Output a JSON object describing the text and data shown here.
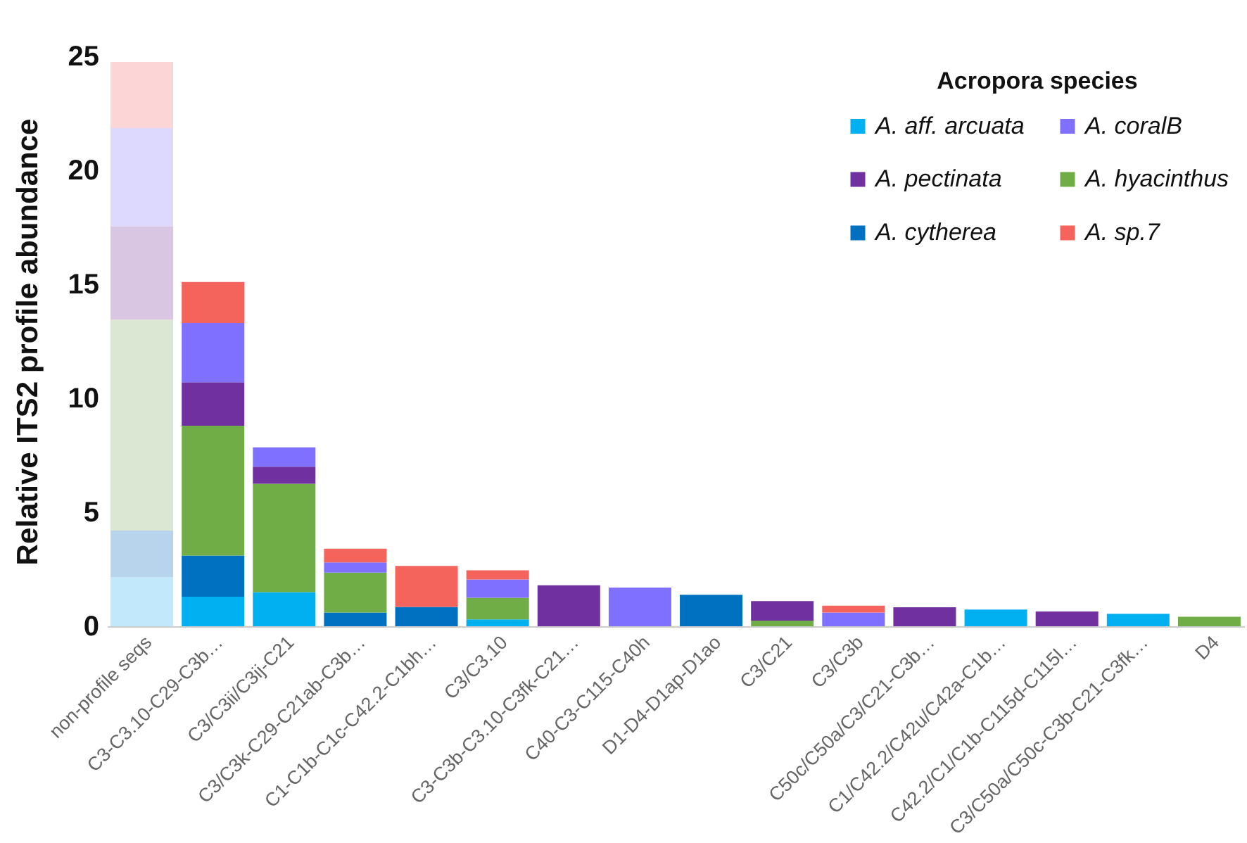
{
  "chart_data": {
    "type": "bar",
    "stacked": true,
    "ylabel": "Relative ITS2 profile abundance",
    "legend_title": "Acropora species",
    "legend": "top right",
    "grid": false,
    "categories": [
      "non-profile seqs",
      "C3-C3.10-C29-C3b…",
      "C3/C3ii/C3ij-C21",
      "C3/C3k-C29-C21ab-C3b…",
      "C1-C1b-C1c-C42.2-C1bh…",
      "C3/C3.10",
      "C3-C3b-C3.10-C3fk-C21…",
      "C40-C3-C115-C40h",
      "D1-D4-D1ap-D1ao",
      "C3/C21",
      "C3/C3b",
      "C50c/C50a/C3/C21-C3b…",
      "C1/C42.2/C42u/C42a-C1b…",
      "C42.2/C1/C1b-C115d-C115l…",
      "C3/C50a/C50c-C3b-C21-C3fk…",
      "D4"
    ],
    "ylim": [
      0,
      25
    ],
    "yticks": [
      0,
      5,
      10,
      15,
      20,
      25
    ],
    "series": [
      {
        "name": "A. aff. arcuata",
        "color": "#00b0f0",
        "colors": [
          "#c2e9fb",
          "#00b0f0",
          "#00b0f0",
          "#00b0f0",
          "#00b0f0",
          "#00b0f0",
          "#00b0f0",
          "#00b0f0",
          "#00b0f0",
          "#00b0f0",
          "#00b0f0",
          "#00b0f0",
          "#00b0f0",
          "#00b0f0",
          "#00b0f0",
          "#00b0f0"
        ],
        "values": [
          2.15,
          1.3,
          1.5,
          null,
          null,
          0.3,
          null,
          null,
          null,
          null,
          null,
          null,
          0.73,
          null,
          0.55,
          null
        ]
      },
      {
        "name": "A. cytherea",
        "color": "#0070c0",
        "colors": [
          "#b8d4ec",
          "#0070c0",
          "#0070c0",
          "#0070c0",
          "#0070c0",
          "#0070c0",
          "#0070c0",
          "#0070c0",
          "#0070c0",
          "#0070c0",
          "#0070c0",
          "#0070c0",
          "#0070c0",
          "#0070c0",
          "#0070c0",
          "#0070c0"
        ],
        "values": [
          2.05,
          1.8,
          null,
          0.6,
          0.85,
          null,
          null,
          null,
          1.38,
          null,
          null,
          null,
          null,
          null,
          null,
          null
        ]
      },
      {
        "name": "A. hyacinthus",
        "color": "#70ad47",
        "colors": [
          "#dbe7d3",
          "#70ad47",
          "#70ad47",
          "#70ad47",
          "#70ad47",
          "#70ad47",
          "#70ad47",
          "#70ad47",
          "#70ad47",
          "#70ad47",
          "#70ad47",
          "#70ad47",
          "#70ad47",
          "#70ad47",
          "#70ad47",
          "#70ad47"
        ],
        "values": [
          9.25,
          5.7,
          4.75,
          1.75,
          null,
          0.95,
          null,
          null,
          null,
          0.25,
          null,
          null,
          null,
          null,
          null,
          0.42
        ]
      },
      {
        "name": "A. pectinata",
        "color": "#7030a0",
        "colors": [
          "#d8c6e2",
          "#7030a0",
          "#7030a0",
          "#7030a0",
          "#7030a0",
          "#7030a0",
          "#7030a0",
          "#7030a0",
          "#7030a0",
          "#7030a0",
          "#7030a0",
          "#7030a0",
          "#7030a0",
          "#7030a0",
          "#7030a0",
          "#7030a0"
        ],
        "values": [
          4.1,
          1.9,
          0.75,
          null,
          null,
          null,
          1.8,
          null,
          null,
          0.85,
          null,
          0.83,
          null,
          0.65,
          null,
          null
        ]
      },
      {
        "name": "A. coralB",
        "color": "#8070ff",
        "colors": [
          "#dcd8fe",
          "#8070ff",
          "#8070ff",
          "#8070ff",
          "#8070ff",
          "#8070ff",
          "#8070ff",
          "#8070ff",
          "#8070ff",
          "#8070ff",
          "#8070ff",
          "#8070ff",
          "#8070ff",
          "#8070ff",
          "#8070ff",
          "#8070ff"
        ],
        "values": [
          4.3,
          2.6,
          0.85,
          0.45,
          null,
          0.8,
          null,
          1.7,
          null,
          null,
          0.6,
          null,
          null,
          null,
          null,
          null
        ]
      },
      {
        "name": "A. sp.7",
        "color": "#f4645c",
        "colors": [
          "#fcd6d6",
          "#f4645c",
          "#f4645c",
          "#f4645c",
          "#f4645c",
          "#f4645c",
          "#f4645c",
          "#f4645c",
          "#f4645c",
          "#f4645c",
          "#f4645c",
          "#f4645c",
          "#f4645c",
          "#f4645c",
          "#f4645c",
          "#f4645c"
        ],
        "values": [
          2.9,
          1.8,
          null,
          0.6,
          1.8,
          0.4,
          null,
          null,
          null,
          null,
          0.3,
          null,
          null,
          null,
          null,
          null
        ]
      }
    ]
  }
}
